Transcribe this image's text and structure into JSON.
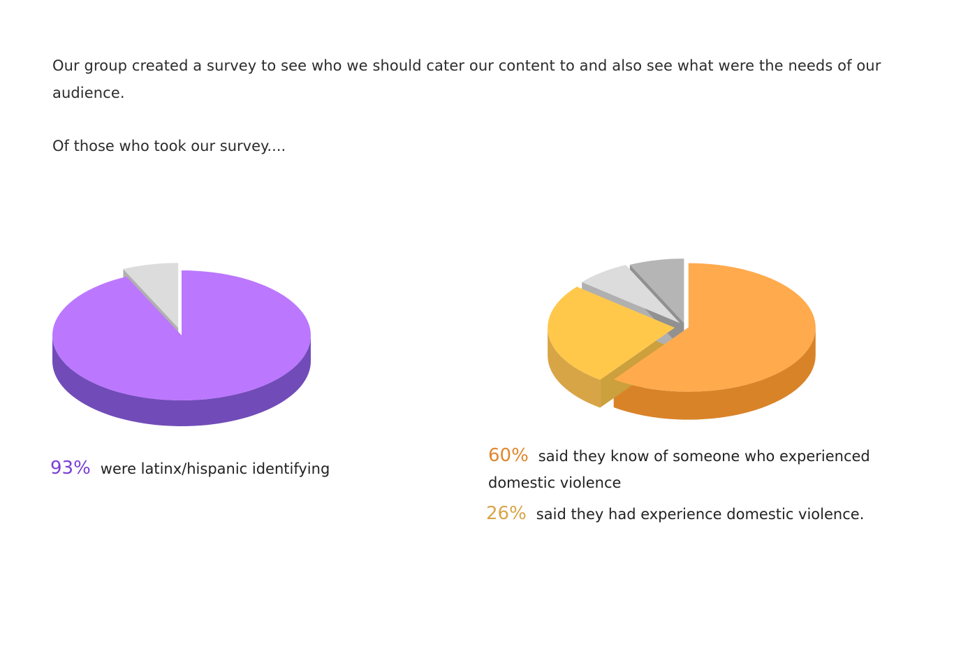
{
  "intro": "Our group created a survey to see who we should cater our content to and also see what were the needs of our audience.",
  "lead": "Of those who took our survey....",
  "colors": {
    "purple": "#bc77ff",
    "purple_side": "#714cb8",
    "orange": "#ffaa4d",
    "orange_side": "#d98328",
    "yellow": "#ffc84b",
    "yellow_side": "#d8a546",
    "light_gray": "#dcdcdc",
    "mid_gray": "#b5b5b5",
    "pct_purple": "#7b3fd6",
    "pct_orange": "#e0872e",
    "pct_yellow": "#d9a448"
  },
  "stats": {
    "latinx": {
      "pct": "93%",
      "text": "were latinx/hispanic identifying"
    },
    "know": {
      "pct": "60%",
      "text": "said they know of someone who experienced domestic violence"
    },
    "had": {
      "pct": "26%",
      "text": "said they had experience domestic violence."
    }
  },
  "chart_data": [
    {
      "type": "pie",
      "slices": [
        {
          "label": "latinx/hispanic identifying",
          "value": 93,
          "color": "#bc77ff"
        },
        {
          "value": 7,
          "color": "#dcdcdc"
        }
      ]
    },
    {
      "type": "pie",
      "slices": [
        {
          "label": "know of someone who experienced domestic violence",
          "value": 60,
          "color": "#ffaa4d"
        },
        {
          "label": "had experience domestic violence",
          "value": 26,
          "color": "#ffc84b"
        },
        {
          "value": 7,
          "color": "#dcdcdc"
        },
        {
          "value": 7,
          "color": "#b5b5b5"
        }
      ]
    }
  ]
}
